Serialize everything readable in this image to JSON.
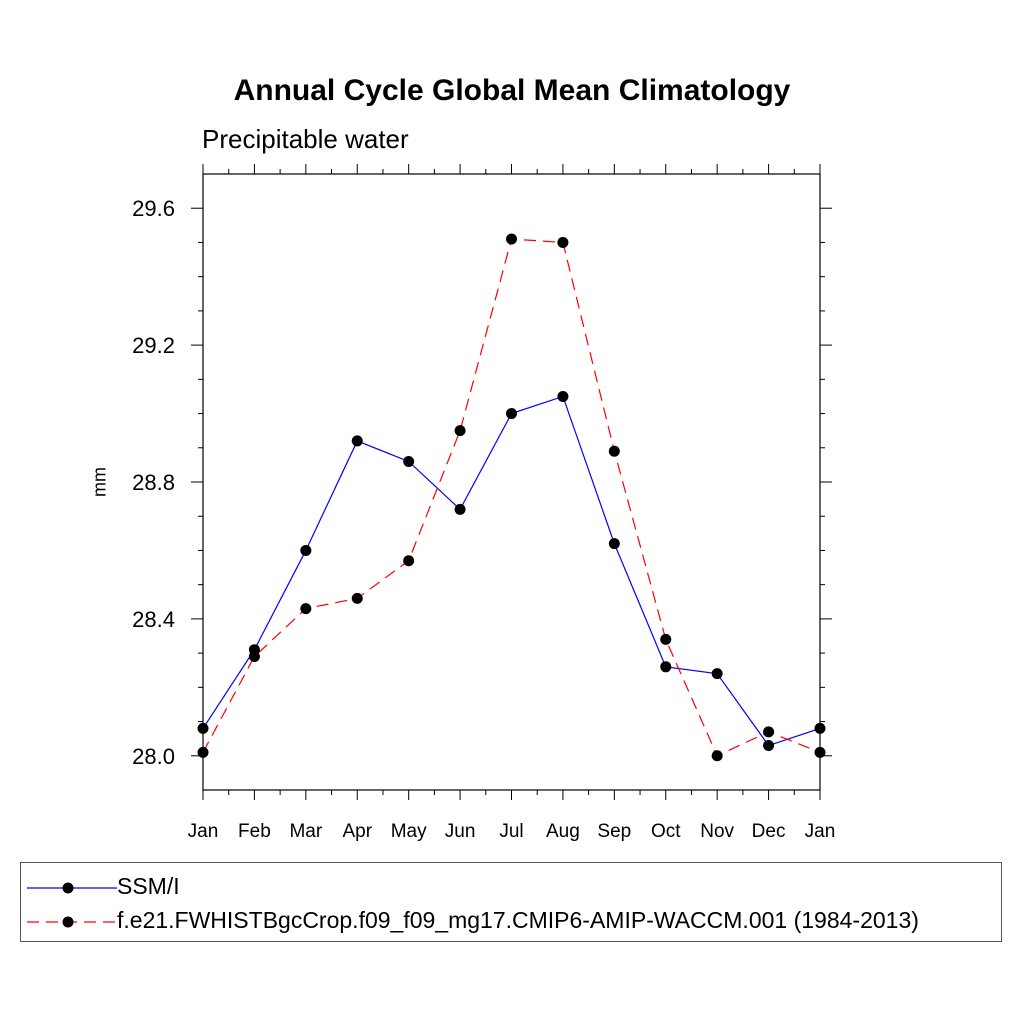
{
  "title": "Annual Cycle Global Mean Climatology",
  "subtitle": "Precipitable water",
  "chart_data": {
    "type": "line",
    "ylabel": "mm",
    "xlabel": "",
    "categories": [
      "Jan",
      "Feb",
      "Mar",
      "Apr",
      "May",
      "Jun",
      "Jul",
      "Aug",
      "Sep",
      "Oct",
      "Nov",
      "Dec",
      "Jan"
    ],
    "ylim": [
      27.9,
      29.7
    ],
    "yticks": [
      28.0,
      28.4,
      28.8,
      29.2,
      29.6
    ],
    "ytick_labels": [
      "28.0",
      "28.4",
      "28.8",
      "29.2",
      "29.6"
    ],
    "grid": false,
    "series": [
      {
        "name": "SSM/I",
        "color": "#0000ff",
        "dash": "solid",
        "values": [
          28.08,
          28.31,
          28.6,
          28.92,
          28.86,
          28.72,
          29.0,
          29.05,
          28.62,
          28.26,
          28.24,
          28.03,
          28.08
        ]
      },
      {
        "name": "f.e21.FWHISTBgcCrop.f09_f09_mg17.CMIP6-AMIP-WACCM.001 (1984-2013)",
        "color": "#ff0000",
        "dash": "dashed",
        "values": [
          28.01,
          28.29,
          28.43,
          28.46,
          28.57,
          28.95,
          29.51,
          29.5,
          28.89,
          28.34,
          28.0,
          28.07,
          28.01
        ]
      }
    ],
    "legend_position": "bottom"
  }
}
